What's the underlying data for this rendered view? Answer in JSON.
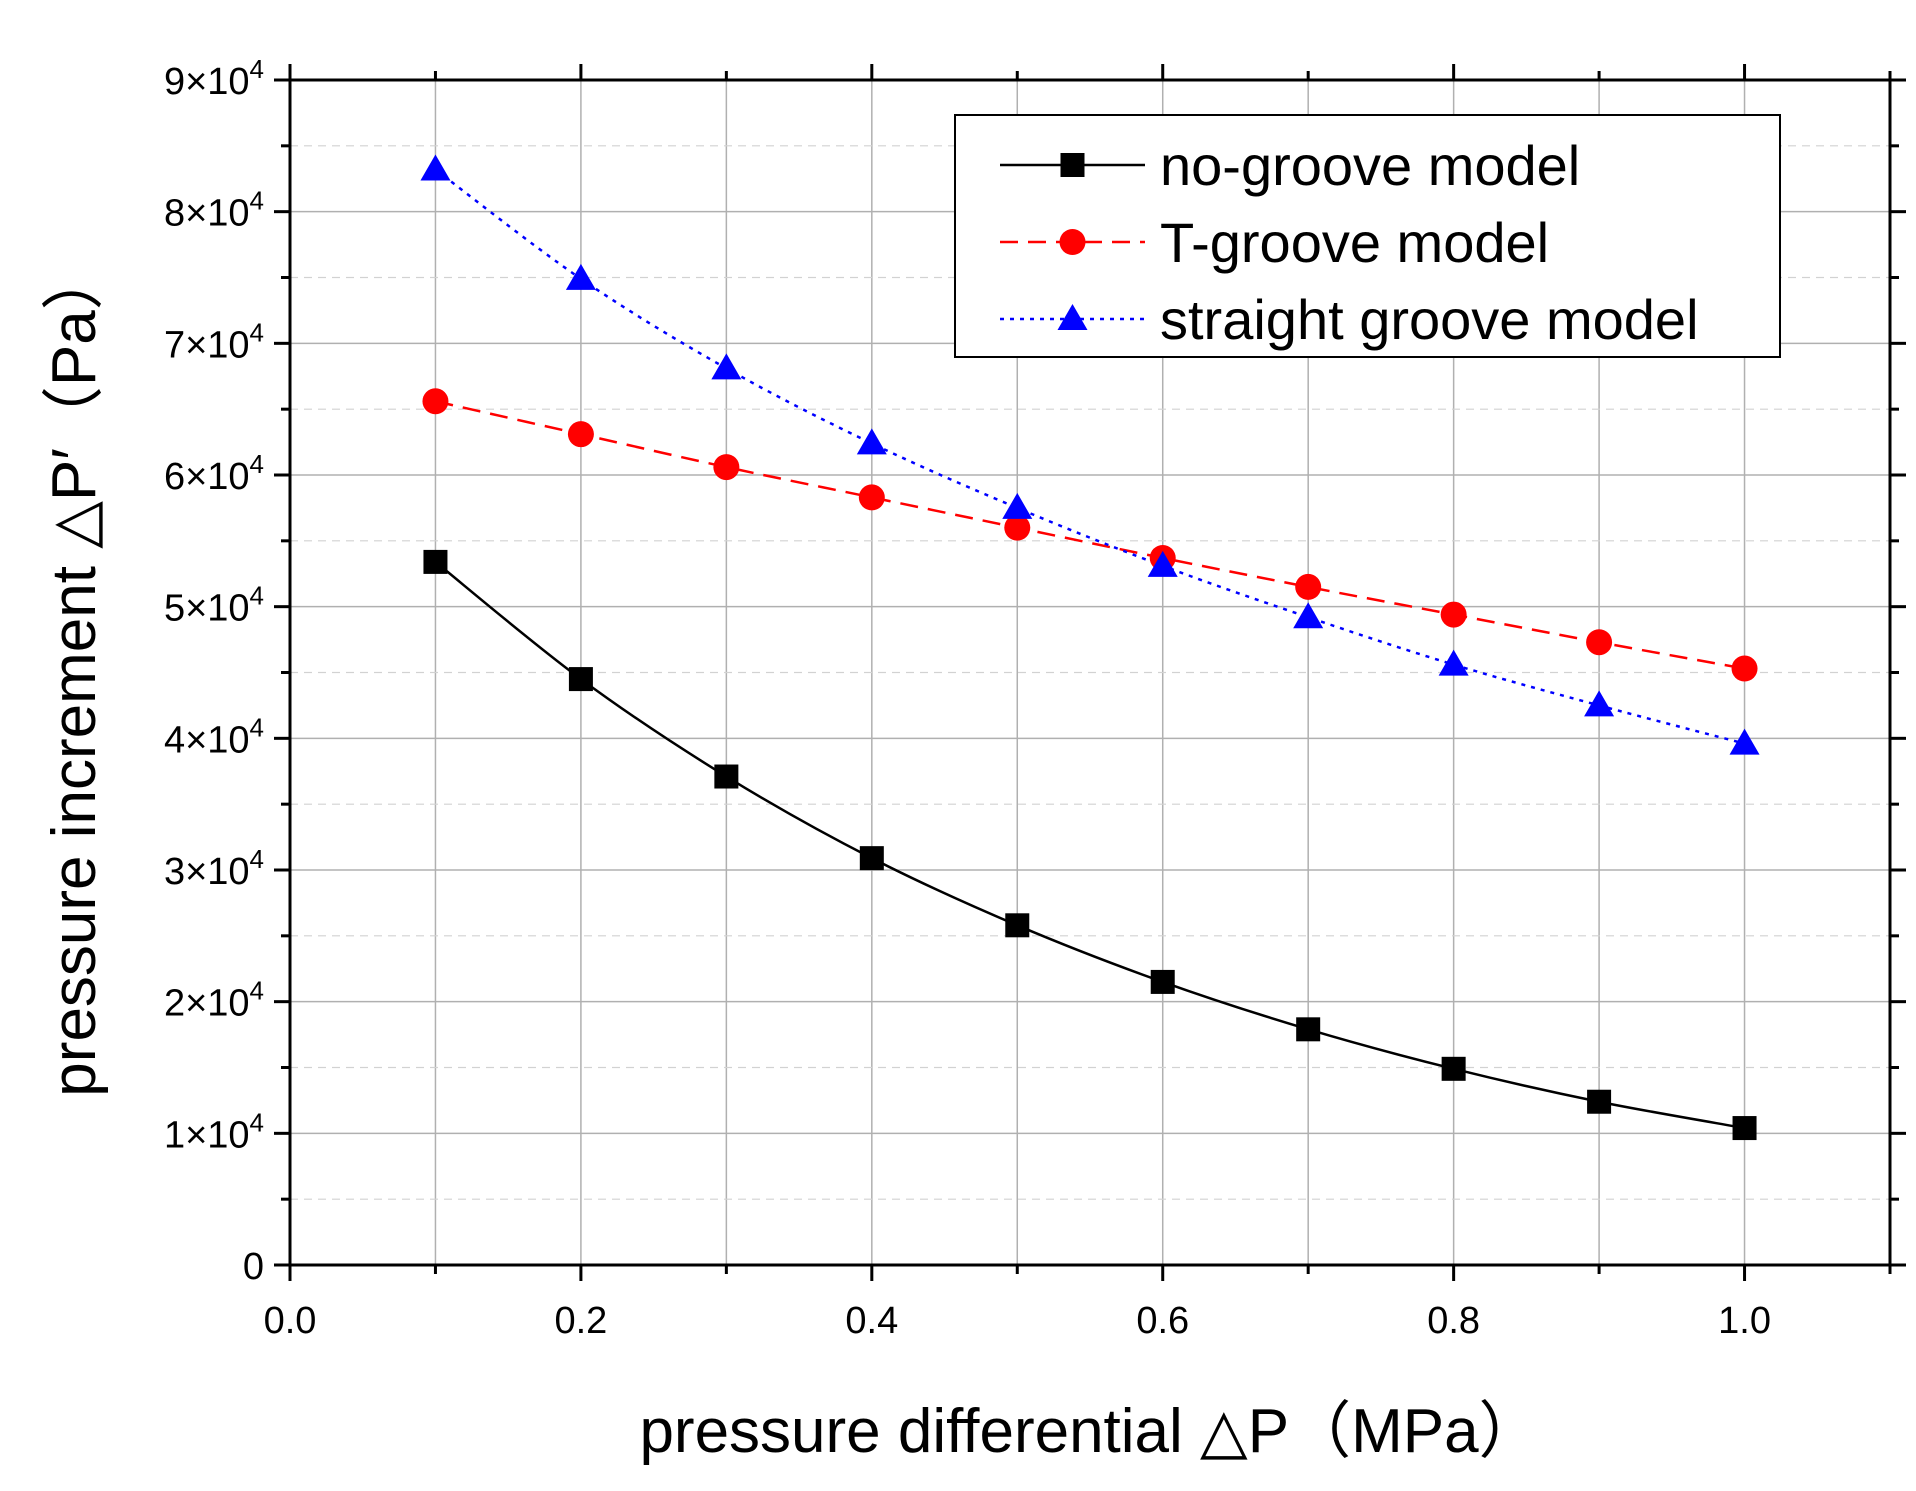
{
  "chart_data": {
    "type": "line",
    "title": "",
    "xlabel": "pressure differential △P（MPa）",
    "ylabel": "pressure increment △P′（Pa）",
    "xlim": [
      0.0,
      1.1
    ],
    "ylim": [
      0,
      90000
    ],
    "grid": true,
    "legend_position": "top-right",
    "x": [
      0.1,
      0.2,
      0.3,
      0.4,
      0.5,
      0.6,
      0.7,
      0.8,
      0.9,
      1.0
    ],
    "x_ticks": [
      {
        "value": 0.0,
        "label": "0.0"
      },
      {
        "value": 0.2,
        "label": "0.2"
      },
      {
        "value": 0.4,
        "label": "0.4"
      },
      {
        "value": 0.6,
        "label": "0.6"
      },
      {
        "value": 0.8,
        "label": "0.8"
      },
      {
        "value": 1.0,
        "label": "1.0"
      }
    ],
    "y_ticks": [
      {
        "value": 0,
        "mantissa": "0",
        "exp": ""
      },
      {
        "value": 10000,
        "mantissa": "1×10",
        "exp": "4"
      },
      {
        "value": 20000,
        "mantissa": "2×10",
        "exp": "4"
      },
      {
        "value": 30000,
        "mantissa": "3×10",
        "exp": "4"
      },
      {
        "value": 40000,
        "mantissa": "4×10",
        "exp": "4"
      },
      {
        "value": 50000,
        "mantissa": "5×10",
        "exp": "4"
      },
      {
        "value": 60000,
        "mantissa": "6×10",
        "exp": "4"
      },
      {
        "value": 70000,
        "mantissa": "7×10",
        "exp": "4"
      },
      {
        "value": 80000,
        "mantissa": "8×10",
        "exp": "4"
      },
      {
        "value": 90000,
        "mantissa": "9×10",
        "exp": "4"
      }
    ],
    "series": [
      {
        "name": "no-groove model",
        "color": "#000000",
        "marker": "square",
        "line": "solid",
        "values": [
          53400,
          44500,
          37100,
          30900,
          25800,
          21500,
          17900,
          14900,
          12400,
          10400
        ]
      },
      {
        "name": "T-groove model",
        "color": "#ff0000",
        "marker": "circle",
        "line": "dashed",
        "values": [
          65600,
          63100,
          60600,
          58300,
          56000,
          53700,
          51500,
          49400,
          47300,
          45300
        ]
      },
      {
        "name": "straight groove model",
        "color": "#0000ff",
        "marker": "triangle",
        "line": "dotted",
        "values": [
          83200,
          74900,
          68100,
          62400,
          57500,
          53100,
          49200,
          45600,
          42500,
          39600
        ]
      }
    ]
  }
}
